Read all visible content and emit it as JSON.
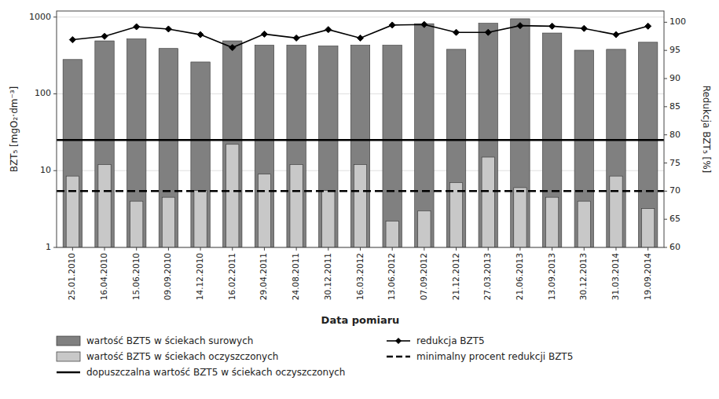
{
  "chart_data": {
    "type": "bar",
    "x_label": "Data pomiaru",
    "y_label": "BZT₅ [mgO₂·dm⁻³]",
    "y2_label": "Redukcja BZT₅ [%]",
    "categories": [
      "25.01.2010",
      "16.04.2010",
      "15.06.2010",
      "09.09.2010",
      "14.12.2010",
      "16.02.2011",
      "29.04.2011",
      "24.08.2011",
      "30.12.2011",
      "16.03.2012",
      "13.06.2012",
      "07.09.2012",
      "21.12.2012",
      "27.03.2013",
      "21.06.2013",
      "13.09.2013",
      "30.12.2013",
      "31.03.2014",
      "19.09.2014"
    ],
    "series": [
      {
        "name": "wartość BZT5 w ściekach surowych",
        "type": "bar",
        "color": "#808080",
        "values": [
          280,
          490,
          520,
          390,
          260,
          490,
          430,
          430,
          420,
          430,
          430,
          820,
          380,
          830,
          950,
          620,
          370,
          380,
          470
        ]
      },
      {
        "name": "wartość BZT5 w ściekach oczyszczonych",
        "type": "bar",
        "color": "#c8c8c8",
        "values": [
          8.5,
          12.0,
          4.0,
          4.5,
          5.5,
          22.0,
          9.0,
          12.0,
          5.5,
          12.0,
          2.2,
          3.0,
          7.0,
          15.0,
          6.0,
          4.5,
          4.0,
          8.5,
          3.2
        ]
      },
      {
        "name": "dopuszczalna wartość BZT5 w ściekach oczyszczonych",
        "type": "hline",
        "color": "#000000",
        "line_style": "solid",
        "value": 25
      },
      {
        "name": "redukcja BZT5",
        "type": "line",
        "axis": "y2",
        "color": "#000000",
        "marker": "diamond",
        "line_style": "solid",
        "values": [
          96.9,
          97.5,
          99.2,
          98.8,
          97.8,
          95.5,
          97.9,
          97.2,
          98.7,
          97.2,
          99.5,
          99.6,
          98.2,
          98.2,
          99.4,
          99.3,
          98.9,
          97.8,
          99.3
        ]
      },
      {
        "name": "minimalny procent redukcji BZT5",
        "type": "hline",
        "axis": "y2",
        "color": "#000000",
        "line_style": "dashed",
        "value": 70
      }
    ],
    "log": "y",
    "ylim": [
      1,
      1200
    ],
    "yticks": [
      1,
      10,
      100,
      1000
    ],
    "y2lim": [
      60,
      102
    ],
    "y2ticks": [
      60,
      65,
      70,
      75,
      80,
      85,
      90,
      95,
      100
    ],
    "grid": true,
    "legend": "bottom"
  }
}
